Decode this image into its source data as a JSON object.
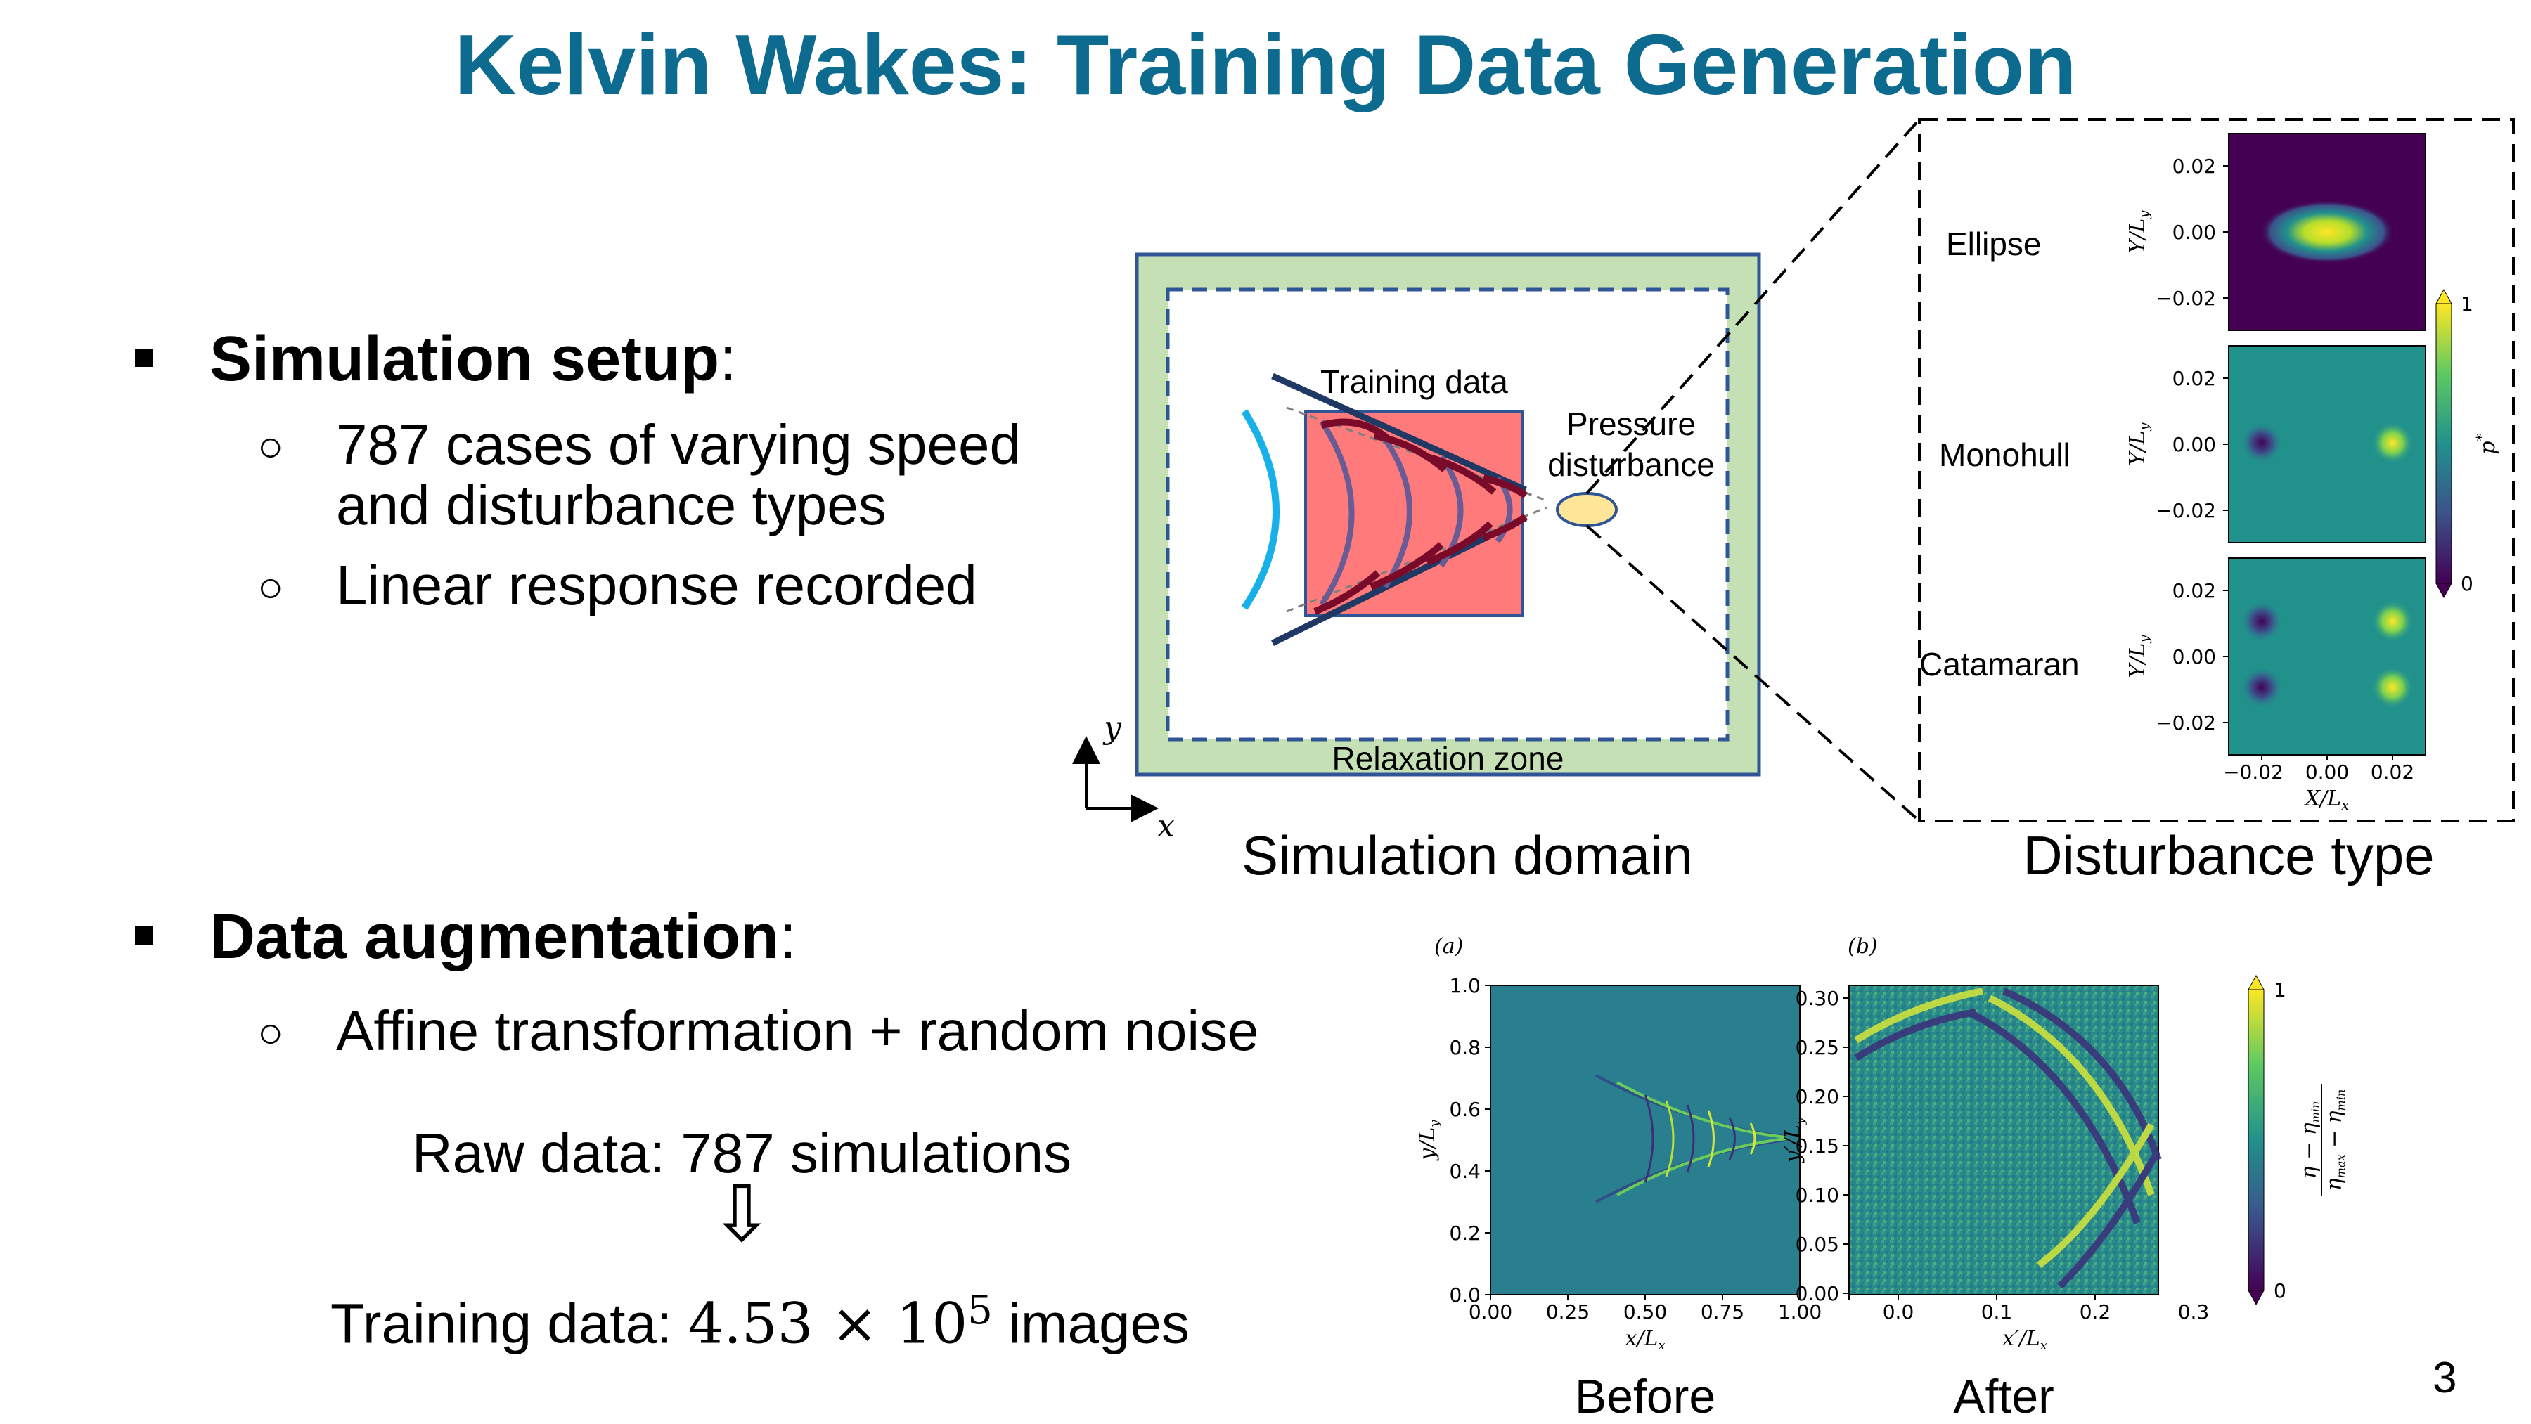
{
  "slide": {
    "title": "Kelvin Wakes: Training Data Generation",
    "page_number": "3"
  },
  "setup": {
    "heading_bold": "Simulation setup",
    "heading_suffix": ":",
    "items": [
      {
        "line1": "787 cases of varying speed",
        "line2": "and disturbance types"
      },
      {
        "line1": "Linear response recorded"
      }
    ]
  },
  "augmentation": {
    "heading_bold": "Data augmentation",
    "heading_suffix": ":",
    "item": "Affine transformation + random noise",
    "raw": "Raw data: 787 simulations",
    "arrow": "⇩",
    "training_prefix": "Training data: ",
    "training_math": "4.53 × 10",
    "training_exp": "5",
    "training_suffix": " images"
  },
  "domain_diagram": {
    "training_label": "Training data",
    "pressure_label_1": "Pressure",
    "pressure_label_2": "disturbance",
    "relaxation_label": "Relaxation zone",
    "axis_y": "y",
    "axis_x": "x",
    "caption": "Simulation domain",
    "colors": {
      "relaxation": "#c5e0b4",
      "border": "#2f5597",
      "training": "#ff7b7b",
      "ellipse": "#ffe699",
      "wake_dark": "#7a0a2a",
      "wake_blue": "#17b0e8"
    }
  },
  "disturbance": {
    "caption": "Disturbance type",
    "types": [
      "Ellipse",
      "Monohull",
      "Catamaran"
    ],
    "y_ticks": [
      "0.02",
      "0.00",
      "−0.02"
    ],
    "x_ticks": [
      "−0.02",
      "0.00",
      "0.02"
    ],
    "ylabel": "Y/L",
    "ylabel_sub": "y",
    "xlabel": "X/L",
    "xlabel_sub": "x",
    "colorbar_label": "p",
    "colorbar_sup": "*",
    "colorbar_max": "1",
    "colorbar_min": "0"
  },
  "before_after": {
    "panel_a": "(a)",
    "panel_b": "(b)",
    "a_y_ticks": [
      "1.0",
      "0.8",
      "0.6",
      "0.4",
      "0.2",
      "0.0"
    ],
    "a_x_ticks": [
      "0.00",
      "0.25",
      "0.50",
      "0.75",
      "1.00"
    ],
    "a_ylabel": "y/L",
    "a_xlabel": "x/L",
    "b_y_ticks": [
      "0.30",
      "0.25",
      "0.20",
      "0.15",
      "0.10",
      "0.05",
      "0.00"
    ],
    "b_x_ticks": [
      "0.0",
      "0.1",
      "0.2",
      "0.3"
    ],
    "b_ylabel": "y′/L",
    "b_xlabel": "x′/L",
    "colorbar_num": "η − η",
    "colorbar_num_sub": "min",
    "colorbar_den": "η",
    "colorbar_den_sub1": "max",
    "colorbar_den_mid": " − η",
    "colorbar_den_sub2": "min",
    "colorbar_max": "1",
    "colorbar_min": "0",
    "caption_before": "Before",
    "caption_after": "After"
  }
}
